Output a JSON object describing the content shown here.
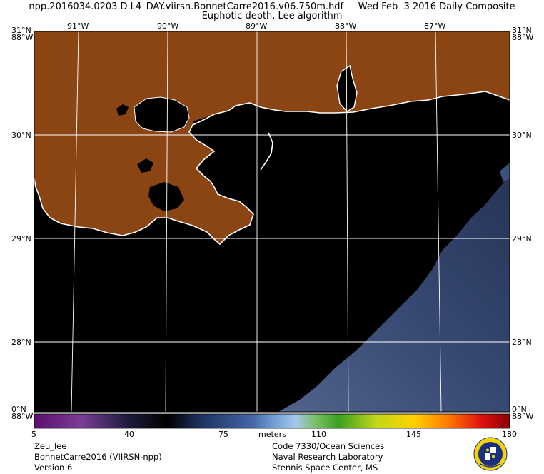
{
  "header": {
    "line1": "npp.2016034.0203.D.L4_DAY.viirsn.BonnetCarre2016.v06.750m.hdf     Wed Feb  3 2016 Daily Composite",
    "line2": "Euphotic depth, Lee algorithm"
  },
  "map": {
    "lon_labels_top": [
      "91°W",
      "90°W",
      "89°W",
      "88°W",
      "87°W"
    ],
    "lat_labels": [
      "30°N",
      "29°N",
      "28°N"
    ],
    "corner_top_left": [
      "31°N",
      "88°W"
    ],
    "corner_top_right": [
      "31°N",
      "88°W"
    ],
    "corner_bottom_left": [
      "0°N",
      "88°W"
    ],
    "corner_bottom_right": [
      "0°N",
      "88°W"
    ],
    "colors": {
      "land": "#8B4513",
      "water_low": "#000000",
      "water_deep": "#3b4f7a",
      "coast": "#ffffff",
      "grid": "#ffffff"
    }
  },
  "colorbar": {
    "tick_labels": [
      "5",
      "40",
      "75",
      "110",
      "145",
      "180"
    ],
    "units": "meters",
    "min": 5,
    "max": 180
  },
  "footer": {
    "left": [
      "Zeu_lee",
      "BonnetCarre2016 (VIIRSN-npp)",
      "Version 6"
    ],
    "right": [
      "Code 7330/Ocean Sciences",
      "Naval Research Laboratory",
      "Stennis Space Center, MS"
    ]
  },
  "logo": {
    "name": "nrl-seal-icon"
  }
}
